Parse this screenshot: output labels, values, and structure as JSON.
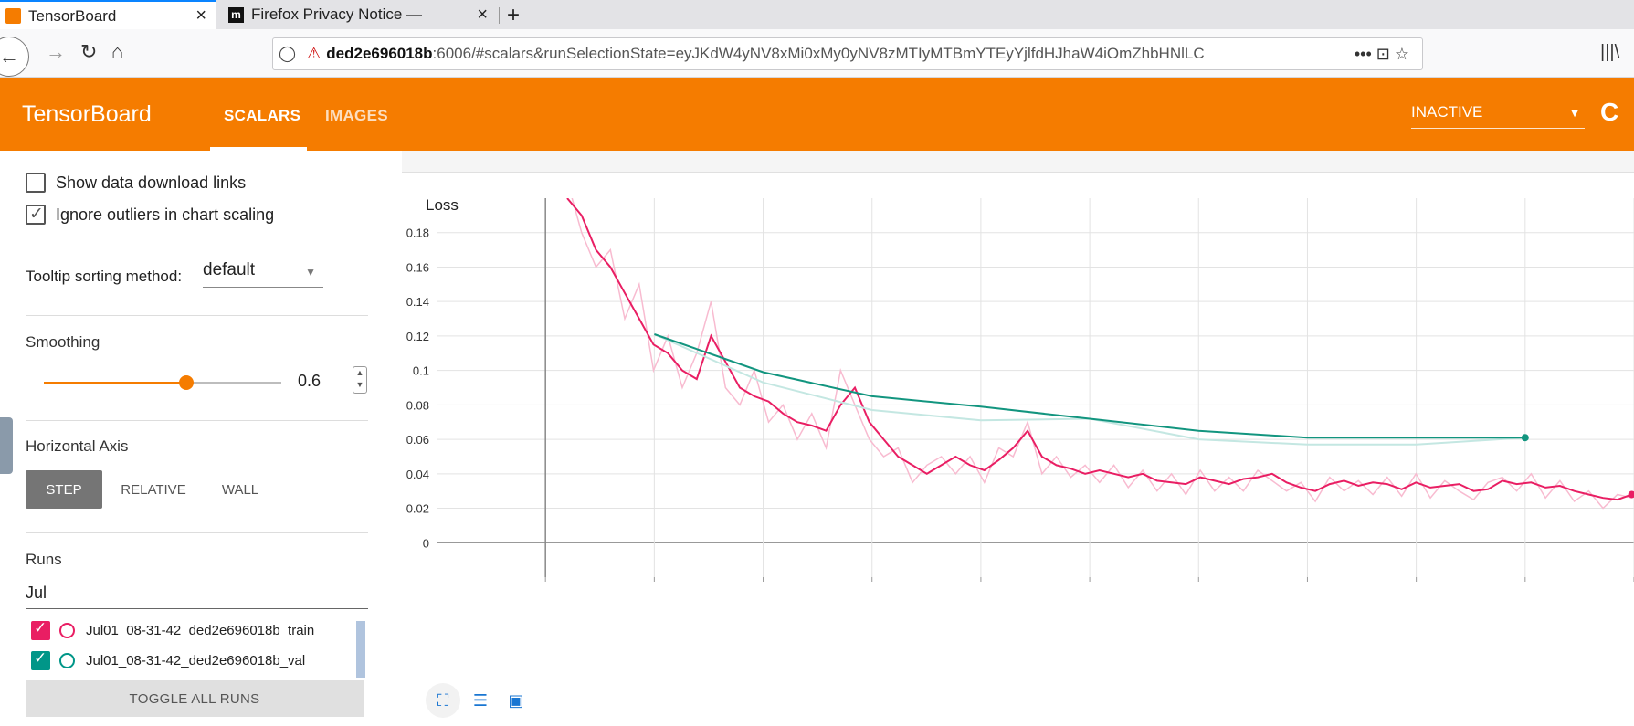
{
  "browser": {
    "tabs": [
      {
        "title": "TensorBoard",
        "close": "×"
      },
      {
        "title": "Firefox Privacy Notice —",
        "close": "×"
      }
    ],
    "new_tab": "+",
    "url_host": "ded2e696018b",
    "url_rest": ":6006/#scalars&runSelectionState=eyJKdW4yNV8xMi0xMy0yNV8zMTIyMTBmYTEyYjlfdHJhaW4iOmZhbHNlLC",
    "page_actions": "••• ⊡ ☆",
    "library": "|||\\"
  },
  "header": {
    "title": "TensorBoard",
    "tabs": [
      "SCALARS",
      "IMAGES"
    ],
    "dropdown": "INACTIVE",
    "reload": "C"
  },
  "sidebar": {
    "show_download_links": "Show data download links",
    "ignore_outliers": "Ignore outliers in chart scaling",
    "tooltip_label": "Tooltip sorting method:",
    "tooltip_value": "default",
    "smoothing_label": "Smoothing",
    "smoothing_value": "0.6",
    "horizontal_axis_label": "Horizontal Axis",
    "axis_options": [
      "STEP",
      "RELATIVE",
      "WALL"
    ],
    "runs_label": "Runs",
    "runs_filter": "Jul",
    "runs": [
      {
        "name": "Jul01_08-31-42_ded2e696018b_train",
        "color": "#e91e63"
      },
      {
        "name": "Jul01_08-31-42_ded2e696018b_val",
        "color": "#009688"
      }
    ],
    "toggle_all": "TOGGLE ALL RUNS"
  },
  "chart_data": {
    "type": "line",
    "title": "Loss",
    "xlabel": "",
    "ylabel": "",
    "y_ticks": [
      "0.18",
      "0.16",
      "0.14",
      "0.12",
      "0.1",
      "0.08",
      "0.06",
      "0.04",
      "0.02",
      "0"
    ],
    "ylim": [
      -0.02,
      0.2
    ],
    "xlim": [
      -1,
      10
    ],
    "series": [
      {
        "name": "Jul01_08-31-42_ded2e696018b_train",
        "color": "#e91e63",
        "raw_color": "#f8bbd0",
        "x_start": 0.2,
        "x_end": 9.98,
        "smoothed": [
          0.2,
          0.19,
          0.17,
          0.16,
          0.145,
          0.13,
          0.115,
          0.11,
          0.1,
          0.095,
          0.12,
          0.105,
          0.09,
          0.085,
          0.082,
          0.075,
          0.07,
          0.068,
          0.065,
          0.08,
          0.09,
          0.07,
          0.06,
          0.05,
          0.045,
          0.04,
          0.045,
          0.05,
          0.045,
          0.042,
          0.048,
          0.055,
          0.065,
          0.05,
          0.045,
          0.043,
          0.04,
          0.042,
          0.04,
          0.038,
          0.04,
          0.036,
          0.035,
          0.034,
          0.038,
          0.036,
          0.034,
          0.037,
          0.038,
          0.04,
          0.035,
          0.032,
          0.03,
          0.034,
          0.036,
          0.033,
          0.035,
          0.034,
          0.031,
          0.035,
          0.032,
          0.033,
          0.034,
          0.03,
          0.031,
          0.036,
          0.034,
          0.035,
          0.032,
          0.033,
          0.03,
          0.028,
          0.026,
          0.025,
          0.028
        ],
        "raw": [
          0.21,
          0.18,
          0.16,
          0.17,
          0.13,
          0.15,
          0.1,
          0.12,
          0.09,
          0.11,
          0.14,
          0.09,
          0.08,
          0.1,
          0.07,
          0.08,
          0.06,
          0.075,
          0.055,
          0.1,
          0.08,
          0.06,
          0.05,
          0.055,
          0.035,
          0.045,
          0.05,
          0.04,
          0.05,
          0.035,
          0.055,
          0.05,
          0.07,
          0.04,
          0.05,
          0.038,
          0.045,
          0.035,
          0.045,
          0.032,
          0.042,
          0.03,
          0.04,
          0.028,
          0.042,
          0.03,
          0.038,
          0.03,
          0.042,
          0.036,
          0.03,
          0.035,
          0.024,
          0.038,
          0.03,
          0.036,
          0.028,
          0.038,
          0.027,
          0.04,
          0.026,
          0.036,
          0.03,
          0.025,
          0.035,
          0.038,
          0.03,
          0.04,
          0.026,
          0.036,
          0.024,
          0.03,
          0.02,
          0.028,
          0.026
        ]
      },
      {
        "name": "Jul01_08-31-42_ded2e696018b_val",
        "color": "#12957f",
        "raw_color": "#c4e7e2",
        "x": [
          1,
          2,
          3,
          4,
          5,
          6,
          7,
          8,
          9
        ],
        "values": [
          0.121,
          0.099,
          0.085,
          0.079,
          0.072,
          0.065,
          0.061,
          0.061,
          0.061
        ],
        "raw": [
          0.121,
          0.093,
          0.077,
          0.071,
          0.072,
          0.06,
          0.057,
          0.057,
          0.061
        ]
      }
    ]
  }
}
